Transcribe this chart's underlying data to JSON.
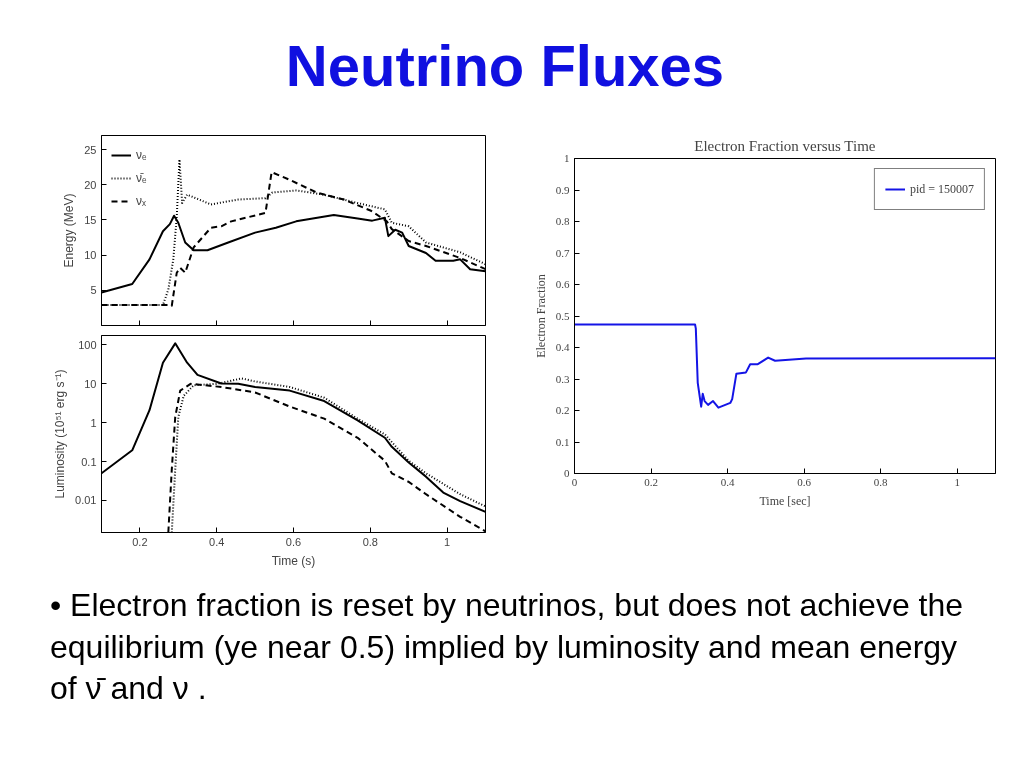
{
  "chart_data": [
    {
      "type": "other",
      "title": "Neutrino Fluxes",
      "annotations": [
        "• Electron fraction is reset by neutrinos, but does not achieve the equilibrium (ye near 0.5) implied by luminosity and mean energy of ν̄ and ν ."
      ]
    },
    {
      "type": "line",
      "ylabel": "Energy (MeV)",
      "xlim": [
        0.1,
        1.1
      ],
      "xticks": [
        0.2,
        0.4,
        0.6,
        0.8,
        1
      ],
      "ylim": [
        0,
        27
      ],
      "yticks": [
        5,
        10,
        15,
        20,
        25
      ],
      "tick_labels": "y",
      "grid": false,
      "legend": "top left",
      "marker": "none",
      "series": [
        {
          "name": "νₑ",
          "color": "#000000",
          "line_style": "solid",
          "x": [
            0.1,
            0.18,
            0.225,
            0.26,
            0.278,
            0.289,
            0.3,
            0.318,
            0.34,
            0.376,
            0.43,
            0.5,
            0.554,
            0.607,
            0.705,
            0.767,
            0.805,
            0.838,
            0.847,
            0.865,
            0.883,
            0.9,
            0.945,
            0.97,
            1.016,
            1.034,
            1.06,
            1.1
          ],
          "values": [
            4.7,
            5.9,
            9.4,
            13.4,
            14.4,
            15.6,
            14.6,
            11.8,
            10.7,
            10.7,
            11.8,
            13.2,
            13.9,
            14.8,
            15.7,
            15.2,
            14.9,
            15.3,
            12.7,
            13.6,
            13.2,
            11.3,
            10.3,
            9.2,
            9.2,
            9.4,
            8.0,
            7.7
          ]
        },
        {
          "name": "ν̄ₑ",
          "color": "#000000",
          "line_style": "dotted",
          "x": [
            0.1,
            0.26,
            0.274,
            0.287,
            0.296,
            0.303,
            0.31,
            0.323,
            0.385,
            0.456,
            0.527,
            0.545,
            0.607,
            0.678,
            0.767,
            0.838,
            0.856,
            0.9,
            0.945,
            1.034,
            1.1
          ],
          "values": [
            2.9,
            2.9,
            5.1,
            9.4,
            15.5,
            23.6,
            17.4,
            18.6,
            17.2,
            17.9,
            18.1,
            18.9,
            19.2,
            18.6,
            17.4,
            16.5,
            14.6,
            14.1,
            11.8,
            10.4,
            8.7
          ]
        },
        {
          "name": "νₓ",
          "color": "#000000",
          "line_style": "dashed",
          "x": [
            0.1,
            0.274,
            0.283,
            0.296,
            0.305,
            0.318,
            0.34,
            0.385,
            0.412,
            0.438,
            0.527,
            0.543,
            0.59,
            0.66,
            0.731,
            0.802,
            0.843,
            0.856,
            0.9,
            0.945,
            1.034,
            1.1
          ],
          "values": [
            2.9,
            2.9,
            2.8,
            7.5,
            8.2,
            7.5,
            11.1,
            13.9,
            14.1,
            14.8,
            16.0,
            21.8,
            20.7,
            18.9,
            17.9,
            16.3,
            14.8,
            13.7,
            12.0,
            11.3,
            9.6,
            8.0
          ]
        }
      ]
    },
    {
      "type": "line",
      "xlabel": "Time (s)",
      "ylabel": "Luminosity (10⁵¹ erg s⁻¹)",
      "log": "y",
      "xlim": [
        0.1,
        1.1
      ],
      "xticks": [
        0.2,
        0.4,
        0.6,
        0.8,
        1
      ],
      "ylim": [
        0.0015,
        175
      ],
      "yticks": [
        0.01,
        0.1,
        1,
        10,
        100
      ],
      "grid": false,
      "marker": "none",
      "series": [
        {
          "color": "#000000",
          "line_style": "solid",
          "x": [
            0.1,
            0.18,
            0.225,
            0.26,
            0.292,
            0.323,
            0.35,
            0.412,
            0.456,
            0.5,
            0.59,
            0.68,
            0.767,
            0.838,
            0.856,
            0.9,
            0.945,
            0.99,
            1.034,
            1.1
          ],
          "values": [
            0.05,
            0.195,
            2.1,
            35,
            110,
            35,
            17,
            10.2,
            10,
            8.3,
            6.7,
            3.6,
            1.15,
            0.41,
            0.24,
            0.095,
            0.041,
            0.016,
            0.0096,
            0.0051
          ]
        },
        {
          "color": "#000000",
          "line_style": "dotted",
          "x": [
            0.283,
            0.292,
            0.3,
            0.314,
            0.34,
            0.402,
            0.465,
            0.5,
            0.59,
            0.68,
            0.767,
            0.838,
            0.9,
            0.945,
            1.034,
            1.1
          ],
          "values": [
            0.0015,
            0.062,
            1.4,
            4.9,
            9.2,
            10,
            13.8,
            11.5,
            8.3,
            4.4,
            1.27,
            0.5,
            0.105,
            0.05,
            0.0145,
            0.007
          ]
        },
        {
          "color": "#000000",
          "line_style": "dashed",
          "x": [
            0.274,
            0.283,
            0.292,
            0.305,
            0.332,
            0.412,
            0.5,
            0.59,
            0.68,
            0.767,
            0.838,
            0.856,
            0.9,
            0.945,
            1.034,
            1.1
          ],
          "values": [
            0.0015,
            0.062,
            1.4,
            6.7,
            10,
            8.3,
            6.0,
            2.6,
            1.27,
            0.41,
            0.105,
            0.05,
            0.03,
            0.0145,
            0.0038,
            0.0016
          ]
        }
      ]
    },
    {
      "type": "line",
      "title": "Electron Fraction versus Time",
      "xlabel": "Time [sec]",
      "ylabel": "Electron Fraction",
      "xlim": [
        0,
        1.1
      ],
      "xticks": [
        0,
        0.2,
        0.4,
        0.6,
        0.8,
        1
      ],
      "ylim": [
        0,
        1
      ],
      "yticks": [
        0,
        0.1,
        0.2,
        0.3,
        0.4,
        0.5,
        0.6,
        0.7,
        0.8,
        0.9,
        1
      ],
      "grid": false,
      "legend": "top right",
      "marker": "none",
      "series": [
        {
          "name": "pid = 150007",
          "color": "#1414e6",
          "line_style": "solid",
          "x": [
            0,
            0.315,
            0.317,
            0.322,
            0.331,
            0.335,
            0.34,
            0.349,
            0.362,
            0.376,
            0.407,
            0.412,
            0.423,
            0.448,
            0.459,
            0.479,
            0.506,
            0.524,
            0.605,
            1.1
          ],
          "values": [
            0.473,
            0.473,
            0.46,
            0.288,
            0.212,
            0.253,
            0.23,
            0.218,
            0.23,
            0.209,
            0.224,
            0.236,
            0.317,
            0.321,
            0.347,
            0.347,
            0.368,
            0.358,
            0.365,
            0.366
          ]
        }
      ]
    }
  ]
}
